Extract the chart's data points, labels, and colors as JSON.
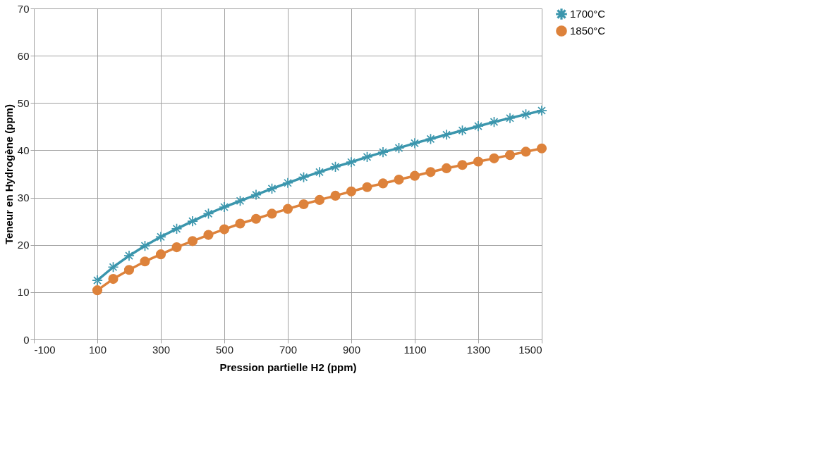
{
  "chart_data": {
    "type": "line",
    "xlabel": "Pression partielle H2 (ppm)",
    "ylabel": "Teneur en Hydrogène (ppm)",
    "x": [
      100,
      150,
      200,
      250,
      300,
      350,
      400,
      450,
      500,
      550,
      600,
      650,
      700,
      750,
      800,
      850,
      900,
      950,
      1000,
      1050,
      1100,
      1150,
      1200,
      1250,
      1300,
      1350,
      1400,
      1450,
      1500
    ],
    "series": [
      {
        "name": "1700°C",
        "color": "#3b96ad",
        "marker": "cross",
        "values": [
          12.5,
          15.3,
          17.7,
          19.8,
          21.7,
          23.4,
          25.0,
          26.6,
          28.0,
          29.3,
          30.6,
          31.9,
          33.1,
          34.3,
          35.4,
          36.5,
          37.5,
          38.6,
          39.6,
          40.5,
          41.5,
          42.4,
          43.3,
          44.2,
          45.1,
          46.0,
          46.8,
          47.6,
          48.4
        ]
      },
      {
        "name": "1850°C",
        "color": "#dd823b",
        "marker": "circle",
        "values": [
          10.4,
          12.8,
          14.7,
          16.5,
          18.0,
          19.5,
          20.8,
          22.1,
          23.3,
          24.5,
          25.5,
          26.6,
          27.6,
          28.6,
          29.5,
          30.4,
          31.3,
          32.2,
          33.0,
          33.8,
          34.6,
          35.4,
          36.2,
          36.9,
          37.6,
          38.3,
          39.0,
          39.7,
          40.4
        ]
      }
    ],
    "xlim": [
      -100,
      1500
    ],
    "xticks": [
      -100,
      100,
      300,
      500,
      700,
      900,
      1100,
      1300,
      1500
    ],
    "ylim": [
      0,
      70
    ],
    "yticks": [
      0,
      10,
      20,
      30,
      40,
      50,
      60,
      70
    ],
    "grid": true,
    "legend": "right",
    "line_style": "solid"
  }
}
